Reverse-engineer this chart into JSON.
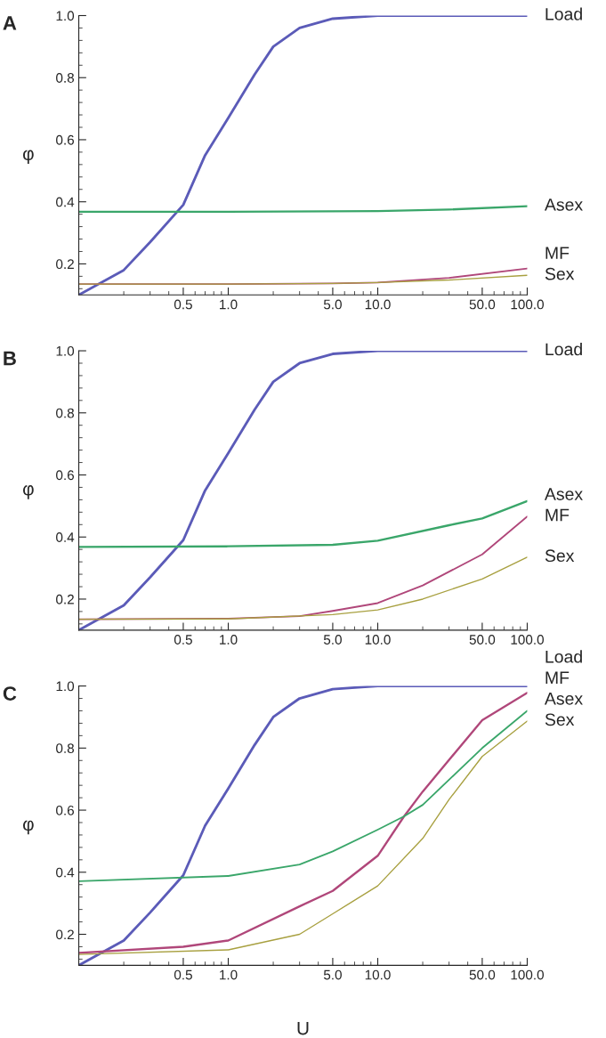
{
  "chart_data": [
    {
      "type": "line",
      "title": "A",
      "ylabel": "φ",
      "xlim": [
        0.1,
        100
      ],
      "ylim": [
        0.1,
        1.0
      ],
      "log": "x",
      "grid": false,
      "legend": false,
      "xticks": [
        {
          "value": 0.5,
          "label": "0.5"
        },
        {
          "value": 1,
          "label": "1.0"
        },
        {
          "value": 5,
          "label": "5.0"
        },
        {
          "value": 10,
          "label": "10.0"
        },
        {
          "value": 50,
          "label": "50.0"
        },
        {
          "value": 100,
          "label": "100.0"
        }
      ],
      "yticks": [
        {
          "value": 0.2,
          "label": "0.2"
        },
        {
          "value": 0.4,
          "label": "0.4"
        },
        {
          "value": 0.6,
          "label": "0.6"
        },
        {
          "value": 0.8,
          "label": "0.8"
        },
        {
          "value": 1.0,
          "label": "1.0"
        }
      ],
      "series": [
        {
          "name": "Load",
          "color": "#5b5bb8",
          "x": [
            0.1,
            0.2,
            0.3,
            0.5,
            0.7,
            1,
            1.5,
            2,
            3,
            5,
            10,
            100
          ],
          "values": [
            0.1,
            0.18,
            0.27,
            0.39,
            0.55,
            0.67,
            0.81,
            0.9,
            0.96,
            0.99,
            1.0,
            1.0
          ]
        },
        {
          "name": "Asex",
          "color": "#3aa66a",
          "x": [
            0.1,
            1,
            10,
            30,
            100
          ],
          "values": [
            0.368,
            0.368,
            0.37,
            0.375,
            0.386
          ]
        },
        {
          "name": "MF",
          "color": "#b0477a",
          "x": [
            0.1,
            1,
            5,
            10,
            30,
            100
          ],
          "values": [
            0.135,
            0.135,
            0.137,
            0.14,
            0.155,
            0.185
          ]
        },
        {
          "name": "Sex",
          "color": "#a8a040",
          "x": [
            0.1,
            1,
            5,
            10,
            30,
            100
          ],
          "values": [
            0.135,
            0.135,
            0.137,
            0.14,
            0.148,
            0.163
          ]
        }
      ]
    },
    {
      "type": "line",
      "title": "B",
      "ylabel": "φ",
      "xlim": [
        0.1,
        100
      ],
      "ylim": [
        0.1,
        1.0
      ],
      "log": "x",
      "grid": false,
      "legend": false,
      "xticks": [
        {
          "value": 0.5,
          "label": "0.5"
        },
        {
          "value": 1,
          "label": "1.0"
        },
        {
          "value": 5,
          "label": "5.0"
        },
        {
          "value": 10,
          "label": "10.0"
        },
        {
          "value": 50,
          "label": "50.0"
        },
        {
          "value": 100,
          "label": "100.0"
        }
      ],
      "yticks": [
        {
          "value": 0.2,
          "label": "0.2"
        },
        {
          "value": 0.4,
          "label": "0.4"
        },
        {
          "value": 0.6,
          "label": "0.6"
        },
        {
          "value": 0.8,
          "label": "0.8"
        },
        {
          "value": 1.0,
          "label": "1.0"
        }
      ],
      "series": [
        {
          "name": "Load",
          "color": "#5b5bb8",
          "x": [
            0.1,
            0.2,
            0.3,
            0.5,
            0.7,
            1,
            1.5,
            2,
            3,
            5,
            10,
            100
          ],
          "values": [
            0.1,
            0.18,
            0.27,
            0.39,
            0.55,
            0.67,
            0.81,
            0.9,
            0.96,
            0.99,
            1.0,
            1.0
          ]
        },
        {
          "name": "Asex",
          "color": "#3aa66a",
          "x": [
            0.1,
            1,
            5,
            10,
            30,
            50,
            100
          ],
          "values": [
            0.368,
            0.37,
            0.375,
            0.388,
            0.438,
            0.46,
            0.516
          ]
        },
        {
          "name": "MF",
          "color": "#b0477a",
          "x": [
            0.1,
            1,
            3,
            5,
            10,
            20,
            50,
            100
          ],
          "values": [
            0.135,
            0.137,
            0.145,
            0.162,
            0.187,
            0.244,
            0.344,
            0.466
          ]
        },
        {
          "name": "Sex",
          "color": "#a8a040",
          "x": [
            0.1,
            1,
            5,
            10,
            20,
            50,
            100
          ],
          "values": [
            0.135,
            0.136,
            0.15,
            0.165,
            0.2,
            0.265,
            0.335
          ]
        }
      ]
    },
    {
      "type": "line",
      "title": "C",
      "xlabel": "U",
      "ylabel": "φ",
      "xlim": [
        0.1,
        100
      ],
      "ylim": [
        0.1,
        1.0
      ],
      "log": "x",
      "grid": false,
      "legend": false,
      "xticks": [
        {
          "value": 0.5,
          "label": "0.5"
        },
        {
          "value": 1,
          "label": "1.0"
        },
        {
          "value": 5,
          "label": "5.0"
        },
        {
          "value": 10,
          "label": "10.0"
        },
        {
          "value": 50,
          "label": "50.0"
        },
        {
          "value": 100,
          "label": "100.0"
        }
      ],
      "yticks": [
        {
          "value": 0.2,
          "label": "0.2"
        },
        {
          "value": 0.4,
          "label": "0.4"
        },
        {
          "value": 0.6,
          "label": "0.6"
        },
        {
          "value": 0.8,
          "label": "0.8"
        },
        {
          "value": 1.0,
          "label": "1.0"
        }
      ],
      "series": [
        {
          "name": "Load",
          "color": "#5b5bb8",
          "x": [
            0.1,
            0.2,
            0.3,
            0.5,
            0.7,
            1,
            1.5,
            2,
            3,
            5,
            10,
            100
          ],
          "values": [
            0.1,
            0.18,
            0.27,
            0.39,
            0.55,
            0.67,
            0.81,
            0.9,
            0.96,
            0.99,
            1.0,
            1.0
          ]
        },
        {
          "name": "MF",
          "color": "#b0477a",
          "x": [
            0.1,
            0.5,
            1,
            3,
            5,
            10,
            15,
            20,
            50,
            100
          ],
          "values": [
            0.14,
            0.16,
            0.18,
            0.29,
            0.34,
            0.453,
            0.58,
            0.66,
            0.89,
            0.978
          ]
        },
        {
          "name": "Asex",
          "color": "#3aa66a",
          "x": [
            0.1,
            1,
            3,
            5,
            10,
            15,
            20,
            50,
            100
          ],
          "values": [
            0.371,
            0.388,
            0.425,
            0.467,
            0.537,
            0.58,
            0.617,
            0.8,
            0.92
          ]
        },
        {
          "name": "Sex",
          "color": "#a8a040",
          "x": [
            0.1,
            1,
            3,
            5,
            10,
            20,
            30,
            50,
            100
          ],
          "values": [
            0.135,
            0.15,
            0.2,
            0.266,
            0.356,
            0.509,
            0.634,
            0.773,
            0.887
          ]
        }
      ]
    }
  ]
}
